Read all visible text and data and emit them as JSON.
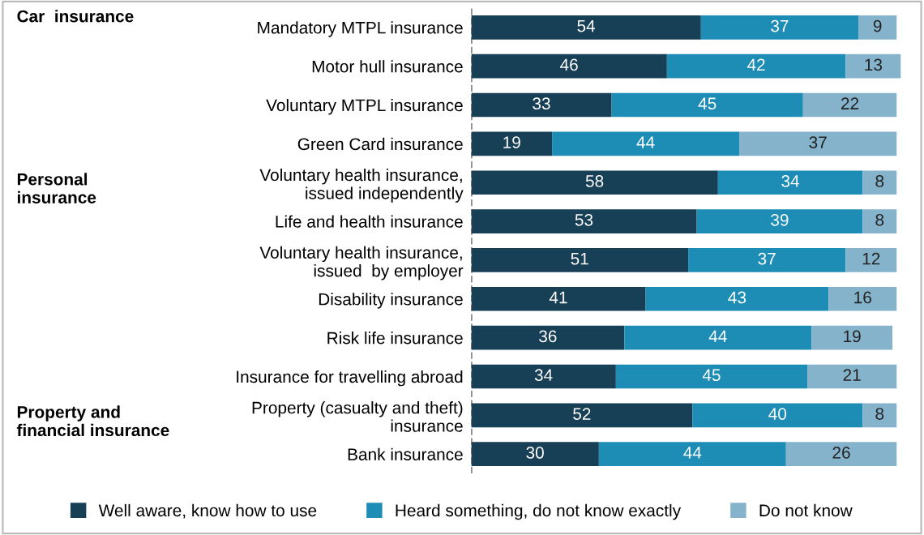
{
  "chart_data": {
    "type": "bar",
    "orientation": "horizontal",
    "stacked": true,
    "data_labels": true,
    "tick_labels": "y",
    "legend": "bottom",
    "grid": false,
    "categories": [
      "Mandatory MTPL insurance",
      "Motor hull insurance",
      "Voluntary MTPL insurance",
      "Green Card insurance",
      "Voluntary health insurance,\nissued independently",
      "Life and health insurance",
      "Voluntary health insurance,\nissued  by employer",
      "Disability insurance",
      "Risk life insurance",
      "Insurance for travelling abroad",
      "Property (casualty and theft)\ninsurance",
      "Bank insurance"
    ],
    "xlim": [
      0,
      101
    ],
    "series": [
      {
        "name": "Well aware, know how to use",
        "color": "#173f55",
        "values": [
          54,
          46,
          33,
          19,
          58,
          53,
          51,
          41,
          36,
          34,
          52,
          30
        ]
      },
      {
        "name": "Heard something, do not know exactly",
        "color": "#1e8db5",
        "values": [
          37,
          42,
          45,
          44,
          34,
          39,
          37,
          43,
          44,
          45,
          40,
          44
        ]
      },
      {
        "name": "Do not know",
        "color": "#86b3cc",
        "values": [
          9,
          13,
          22,
          37,
          8,
          8,
          12,
          16,
          19,
          21,
          8,
          26
        ]
      }
    ],
    "ref_lines": [
      {
        "axis": "x",
        "value": 0,
        "color": "#444444",
        "line_style": "dashed"
      }
    ],
    "annotations": [
      "Car  insurance",
      "Personal\ninsurance",
      "Property and\nfinancial insurance"
    ]
  }
}
